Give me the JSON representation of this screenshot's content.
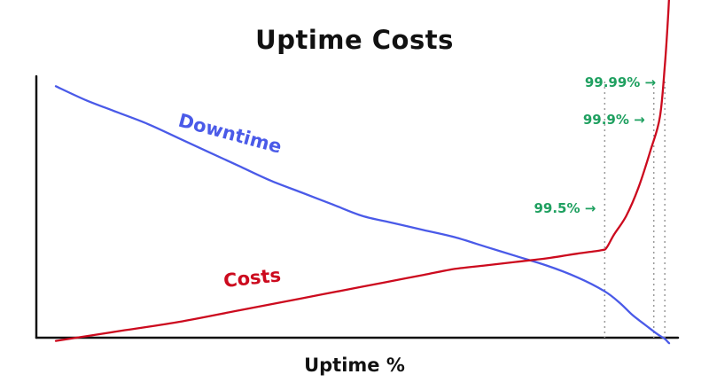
{
  "chart_data": {
    "type": "line",
    "title": "Uptime Costs",
    "xlabel": "Uptime %",
    "ylabel": "",
    "grid": false,
    "legend": "none",
    "series": [
      {
        "name": "Downtime",
        "color": "#4a5ae8",
        "x": [
          0,
          5,
          10,
          15,
          20,
          25,
          30,
          35,
          40,
          45,
          50,
          55,
          60,
          65,
          70,
          75,
          80,
          85,
          89.5,
          92,
          94,
          96,
          98,
          99.2,
          100
        ],
        "y": [
          95,
          89,
          84,
          79,
          73,
          67,
          61,
          55,
          50,
          45,
          40,
          37,
          34,
          31,
          27,
          23,
          19,
          14,
          8,
          3,
          -2,
          -6,
          -10,
          -12,
          -14
        ]
      },
      {
        "name": "Costs",
        "color": "#cc0a1e",
        "x": [
          0,
          10,
          20,
          30,
          40,
          50,
          55,
          60,
          65,
          70,
          75,
          80,
          85,
          89,
          89.8,
          91,
          93,
          95,
          97,
          98.5,
          99.3,
          99.8,
          100
        ],
        "y": [
          -13,
          -9,
          -5,
          0,
          5,
          10,
          12.5,
          15,
          17.5,
          19,
          20.5,
          22,
          24,
          25.5,
          26.5,
          32,
          40,
          52,
          68,
          82,
          104,
          123,
          133
        ]
      }
    ],
    "markers": [
      {
        "label": "99.5% →",
        "x": 89.5,
        "color": "#1fa060"
      },
      {
        "label": "99.9% →",
        "x": 97.5,
        "color": "#1fa060"
      },
      {
        "label": "99.99% →",
        "x": 99.3,
        "color": "#1fa060"
      }
    ]
  }
}
